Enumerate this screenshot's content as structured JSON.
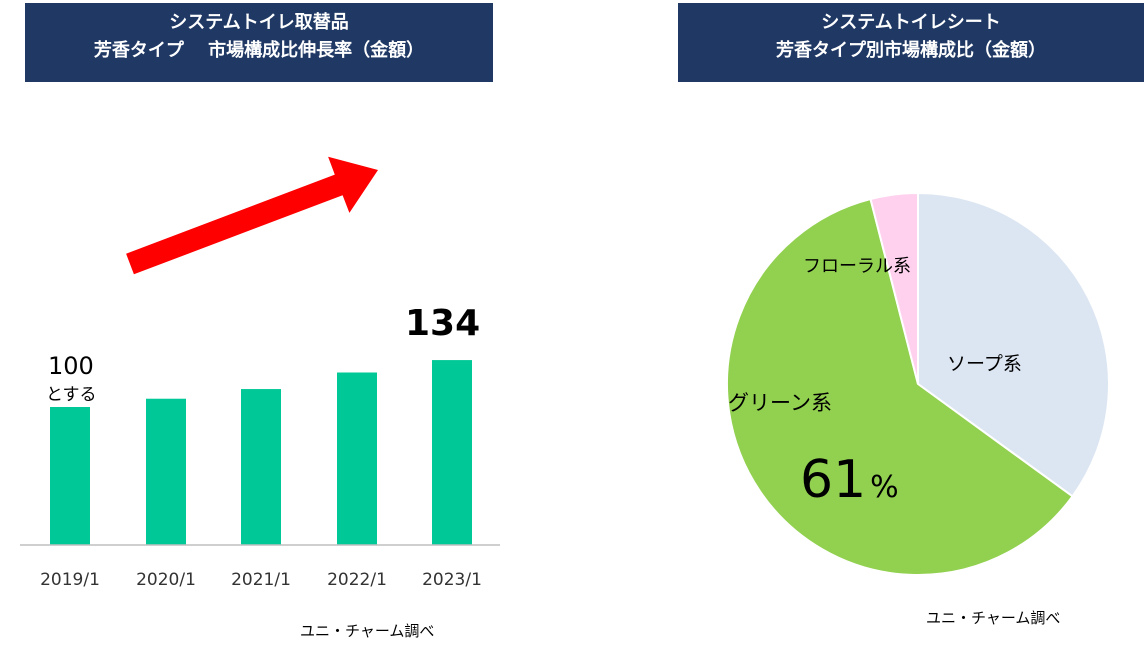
{
  "left_panel": {
    "title_line1": "システムトイレ取替品",
    "title_line2": "芳香タイプ　 市場構成比伸長率（金額）",
    "source": "ユニ・チャーム調べ"
  },
  "right_panel": {
    "title_line1": "システムトイレシート",
    "title_line2": "芳香タイプ別市場構成比（金額）",
    "source": "ユニ・チャーム調べ"
  },
  "colors": {
    "banner": "#1f3864",
    "bar": "#00c896",
    "arrow": "#ff0000",
    "soap": "#dce6f2",
    "green": "#92d050",
    "floral": "#ffd1ee"
  },
  "chart_data": [
    {
      "type": "bar",
      "categories": [
        "2019/1",
        "2020/1",
        "2021/1",
        "2022/1",
        "2023/1"
      ],
      "values": [
        100,
        106,
        113,
        125,
        134
      ],
      "ylim": [
        0,
        175
      ],
      "annotations": {
        "start_value": "100",
        "start_note": "とする",
        "end_value": "134"
      }
    },
    {
      "type": "pie",
      "slices": [
        {
          "label": "ソープ系",
          "value": 35,
          "color": "#dce6f2"
        },
        {
          "label": "グリーン系",
          "value": 61,
          "color": "#92d050",
          "value_label": "61",
          "unit": "%"
        },
        {
          "label": "フローラル系",
          "value": 4,
          "color": "#ffd1ee"
        }
      ]
    }
  ]
}
